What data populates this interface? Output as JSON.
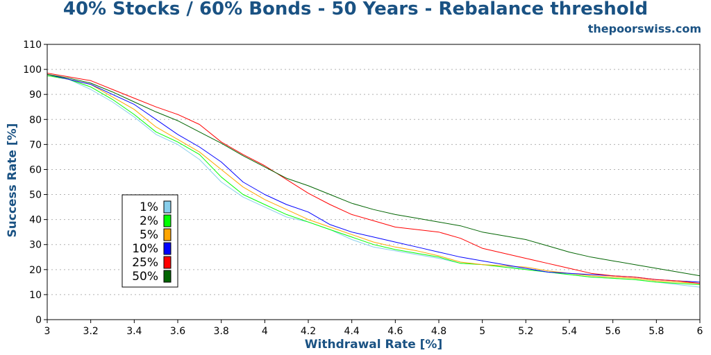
{
  "chart_data": {
    "type": "line",
    "title": "40% Stocks / 60% Bonds - 50 Years - Rebalance threshold",
    "subtitle": "thepoorswiss.com",
    "xlabel": "Withdrawal Rate [%]",
    "ylabel": "Success Rate [%]",
    "xlim": [
      3,
      6
    ],
    "ylim": [
      0,
      110
    ],
    "xticks": [
      "3",
      "3.2",
      "3.4",
      "3.6",
      "3.8",
      "4",
      "4.2",
      "4.4",
      "4.6",
      "4.8",
      "5",
      "5.2",
      "5.4",
      "5.6",
      "5.8",
      "6"
    ],
    "yticks": [
      "0",
      "10",
      "20",
      "30",
      "40",
      "50",
      "60",
      "70",
      "80",
      "90",
      "100",
      "110"
    ],
    "grid": "horizontal dotted",
    "legend_position": "left-center",
    "x": [
      3,
      3.1,
      3.2,
      3.3,
      3.4,
      3.5,
      3.6,
      3.7,
      3.8,
      3.9,
      4,
      4.1,
      4.2,
      4.3,
      4.4,
      4.5,
      4.6,
      4.7,
      4.8,
      4.9,
      5,
      5.1,
      5.2,
      5.3,
      5.4,
      5.5,
      5.6,
      5.7,
      5.8,
      5.9,
      6
    ],
    "series": [
      {
        "name": "1%",
        "color": "#87ceeb",
        "values": [
          98,
          96,
          92,
          87,
          81,
          74,
          70,
          64,
          55,
          49,
          45,
          41,
          39,
          36,
          32,
          29,
          27.5,
          26,
          24.5,
          22.5,
          22,
          21.5,
          20,
          19,
          18,
          17,
          16.5,
          16,
          15,
          14,
          13
        ]
      },
      {
        "name": "2%",
        "color": "#00ff00",
        "values": [
          97.5,
          96,
          93,
          88,
          82,
          75,
          71,
          66,
          57,
          50,
          46,
          42,
          39,
          36,
          33,
          30,
          28,
          26.5,
          25,
          22.5,
          22,
          21,
          20,
          19,
          18,
          17,
          16.5,
          16,
          15,
          14.5,
          14
        ]
      },
      {
        "name": "5%",
        "color": "#ffa500",
        "values": [
          98,
          96,
          94,
          89,
          84,
          77,
          72,
          67,
          60,
          53,
          48,
          44,
          40,
          37,
          34,
          31,
          29,
          27.5,
          25.5,
          23,
          22,
          21.5,
          21,
          19.5,
          18.5,
          17.5,
          17,
          16.5,
          15.5,
          15,
          14.5
        ]
      },
      {
        "name": "10%",
        "color": "#0000ff",
        "values": [
          98,
          96,
          94,
          90,
          86,
          80,
          74,
          69,
          63,
          55,
          50,
          46,
          43,
          38,
          35,
          33,
          31,
          29,
          27,
          25,
          23.5,
          22,
          20.5,
          19,
          18.5,
          18,
          17.5,
          17,
          16,
          15.5,
          15
        ]
      },
      {
        "name": "25%",
        "color": "#ff0000",
        "values": [
          98.5,
          97,
          95.5,
          92,
          88.5,
          85,
          82,
          78,
          71,
          66,
          61.5,
          56,
          50.5,
          46,
          42,
          39.5,
          37,
          36,
          35,
          32.5,
          28.5,
          26.5,
          24.5,
          22.5,
          20.5,
          18.5,
          17.5,
          17,
          16,
          15.5,
          14.5
        ]
      },
      {
        "name": "50%",
        "color": "#006400",
        "values": [
          98,
          96.5,
          94.5,
          91,
          87,
          83,
          79.5,
          75,
          70.5,
          65.5,
          61,
          56.5,
          53.5,
          50,
          46.5,
          44,
          42,
          40.5,
          39,
          37.5,
          35,
          33.5,
          32,
          29.5,
          27,
          25,
          23.5,
          22,
          20.5,
          19,
          17.5
        ]
      }
    ]
  }
}
